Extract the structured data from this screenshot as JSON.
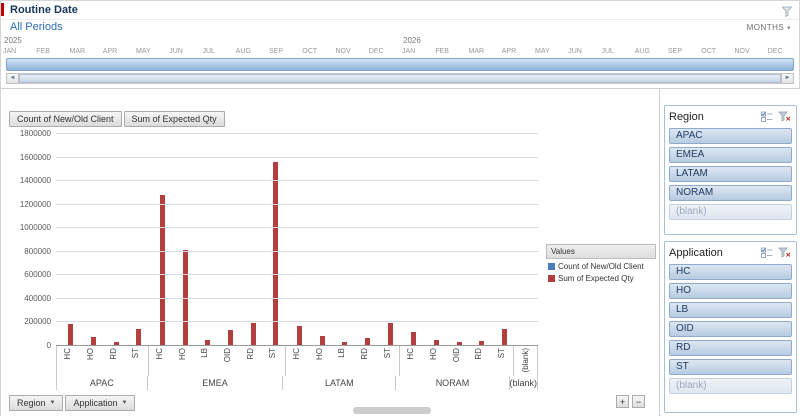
{
  "icons": {
    "dropdown_arrow": "▾",
    "field_dropdown_arrow": "▼",
    "scroll_left": "◄",
    "scroll_right": "►",
    "zoom_in": "+",
    "zoom_out": "−"
  },
  "timeline": {
    "title": "Routine Date",
    "selection_label": "All Periods",
    "level": "MONTHS",
    "years": [
      {
        "label": "2025",
        "months": [
          "JAN",
          "FEB",
          "MAR",
          "APR",
          "MAY",
          "JUN",
          "JUL",
          "AUG",
          "SEP",
          "OCT",
          "NOV",
          "DEC"
        ]
      },
      {
        "label": "2026",
        "months": [
          "JAN",
          "FEB",
          "MAR",
          "APR",
          "MAY",
          "JUN",
          "JUL",
          "AUG",
          "SEP",
          "OCT",
          "NOV",
          "DEC"
        ]
      }
    ]
  },
  "pivot_chart": {
    "value_field_buttons": [
      "Count of New/Old Client",
      "Sum of Expected Qty"
    ],
    "axis_field_buttons": [
      "Region",
      "Application"
    ],
    "legend_title": "Values"
  },
  "chart_data": {
    "type": "bar",
    "title": "",
    "xlabel": "",
    "ylabel": "",
    "ylim": [
      0,
      1800000
    ],
    "ytick_step": 200000,
    "grid": true,
    "legend_position": "right",
    "groups": [
      {
        "label": "APAC",
        "categories": [
          "HC",
          "HO",
          "RD",
          "ST"
        ]
      },
      {
        "label": "EMEA",
        "categories": [
          "HC",
          "HO",
          "LB",
          "OID",
          "RD",
          "ST"
        ]
      },
      {
        "label": "LATAM",
        "categories": [
          "HC",
          "HO",
          "LB",
          "RD",
          "ST"
        ]
      },
      {
        "label": "NORAM",
        "categories": [
          "HC",
          "HO",
          "OID",
          "RD",
          "ST"
        ]
      },
      {
        "label": "(blank)",
        "categories": [
          "(blank)"
        ]
      }
    ],
    "series": [
      {
        "name": "Count of New/Old Client",
        "color": "#4a7ebb",
        "values": [
          0,
          0,
          0,
          0,
          0,
          0,
          0,
          0,
          0,
          0,
          0,
          0,
          0,
          0,
          0,
          0,
          0,
          0,
          0,
          0,
          0
        ]
      },
      {
        "name": "Sum of Expected Qty",
        "color": "#b23f3d",
        "values": [
          175000,
          70000,
          25000,
          135000,
          1270000,
          810000,
          45000,
          125000,
          185000,
          1550000,
          160000,
          75000,
          25000,
          60000,
          185000,
          110000,
          45000,
          25000,
          35000,
          135000,
          0
        ]
      }
    ]
  },
  "slicers": [
    {
      "title": "Region",
      "items": [
        {
          "label": "APAC",
          "has_data": true
        },
        {
          "label": "EMEA",
          "has_data": true
        },
        {
          "label": "LATAM",
          "has_data": true
        },
        {
          "label": "NORAM",
          "has_data": true
        },
        {
          "label": "(blank)",
          "has_data": false
        }
      ]
    },
    {
      "title": "Application",
      "items": [
        {
          "label": "HC",
          "has_data": true
        },
        {
          "label": "HO",
          "has_data": true
        },
        {
          "label": "LB",
          "has_data": true
        },
        {
          "label": "OID",
          "has_data": true
        },
        {
          "label": "RD",
          "has_data": true
        },
        {
          "label": "ST",
          "has_data": true
        },
        {
          "label": "(blank)",
          "has_data": false
        }
      ]
    }
  ]
}
